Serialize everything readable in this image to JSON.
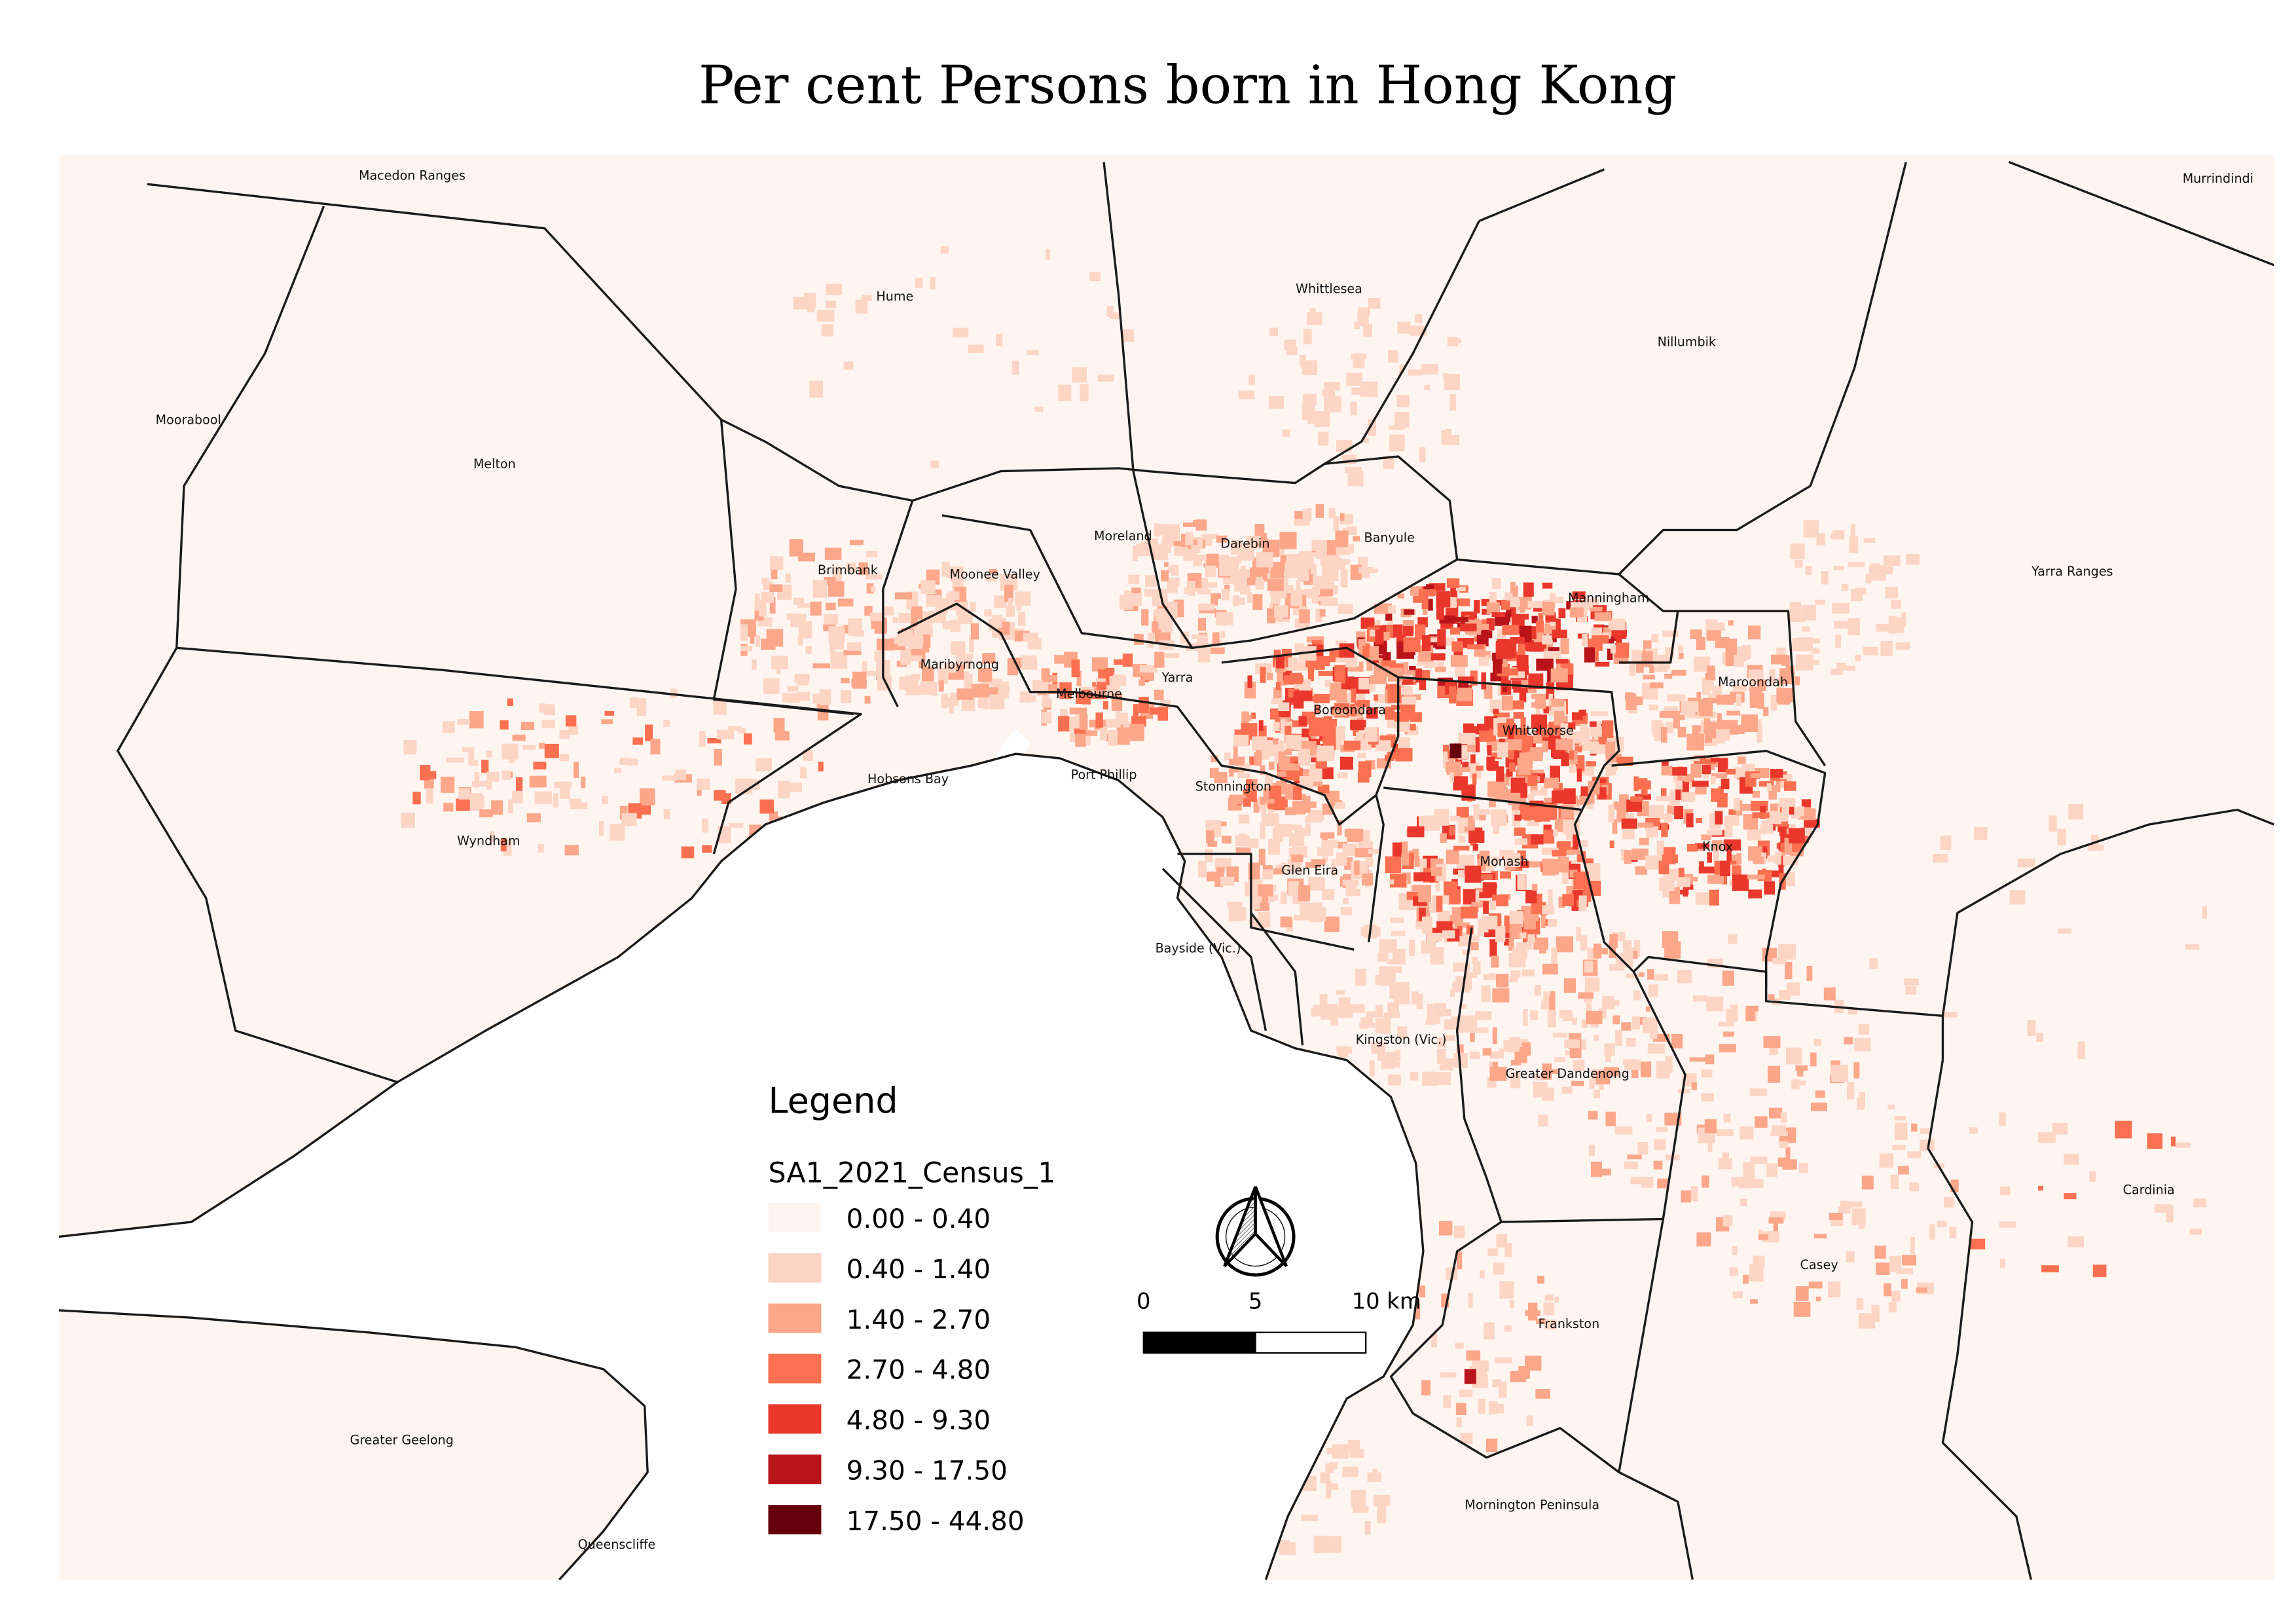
{
  "title": "Per cent Persons born in Hong Kong",
  "map": {
    "land_color": "#fff5f0",
    "water_color": "#ffffff",
    "boundary_color": "#1a1a1a",
    "lga_labels": [
      "Macedon Ranges",
      "Murrindindi",
      "Hume",
      "Whittlesea",
      "Nillumbik",
      "Moorabool",
      "Melton",
      "Moreland",
      "Darebin",
      "Banyule",
      "Yarra Ranges",
      "Brimbank",
      "Moonee Valley",
      "Manningham",
      "Maribyrnong",
      "Yarra",
      "Maroondah",
      "Melbourne",
      "Boroondara",
      "Whitehorse",
      "Hobsons Bay",
      "Port Phillip",
      "Stonnington",
      "Wyndham",
      "Knox",
      "Monash",
      "Glen Eira",
      "Bayside (Vic.)",
      "Kingston (Vic.)",
      "Greater Dandenong",
      "Cardinia",
      "Casey",
      "Frankston",
      "Greater Geelong",
      "Mornington Peninsula",
      "Queenscliffe"
    ]
  },
  "legend": {
    "heading": "Legend",
    "layer": "SA1_2021_Census_1",
    "classes": [
      {
        "label": "0.00 - 0.40",
        "color": "#fff5f0"
      },
      {
        "label": "0.40 - 1.40",
        "color": "#fdd5c4"
      },
      {
        "label": "1.40 - 2.70",
        "color": "#fca68a"
      },
      {
        "label": "2.70 - 4.80",
        "color": "#fb7050"
      },
      {
        "label": "4.80 - 9.30",
        "color": "#ea372c"
      },
      {
        "label": "9.30 - 17.50",
        "color": "#b8141a"
      },
      {
        "label": "17.50 - 44.80",
        "color": "#67000d"
      }
    ]
  },
  "north_arrow": {
    "icon": "north-arrow-icon"
  },
  "scale_bar": {
    "labels": [
      "0",
      "5",
      "10 km"
    ]
  }
}
